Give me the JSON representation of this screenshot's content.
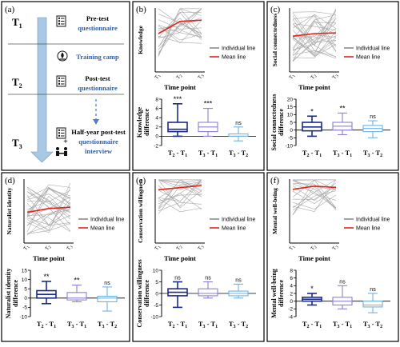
{
  "colors": {
    "individual_line": "#a9a9a9",
    "mean_line": "#e2231a",
    "box_t2t1": "#1c2a8c",
    "box_t3t1": "#8e7fd6",
    "box_t3t2": "#6fb2e4",
    "arrow": "#a8c8e6",
    "step_text": "#2e5fa8"
  },
  "icon_names": [
    "checklist-icon",
    "campfire-icon",
    "checklist-icon",
    "checklist-icon",
    "interview-icon"
  ],
  "panel_a": {
    "label": "(a)",
    "rows": [
      {
        "key": "T1",
        "main": "T",
        "sub": "1",
        "title": "Pre-test",
        "subtitle": "questionnaire"
      },
      {
        "key": "camp",
        "title": "",
        "subtitle": "Training camp"
      },
      {
        "key": "T2",
        "main": "T",
        "sub": "2",
        "title": "Post-test",
        "subtitle": "questionnaire"
      },
      {
        "key": "T3",
        "main": "T",
        "sub": "3",
        "title": "Half-year post-test",
        "subtitle": "questionnaire",
        "subtitle2": "interview"
      }
    ]
  },
  "common": {
    "xlabel": "Time point",
    "legend_individual": "Individual line",
    "legend_mean": "Mean line",
    "time_ticks": [
      "T1",
      "T2",
      "T3"
    ],
    "diff_categories": [
      {
        "main": "T",
        "sub1": "2",
        "minus": " - T",
        "sub2": "1"
      },
      {
        "main": "T",
        "sub1": "3",
        "minus": " - T",
        "sub2": "1"
      },
      {
        "main": "T",
        "sub1": "3",
        "minus": " - T",
        "sub2": "2"
      }
    ]
  },
  "chart_data": [
    {
      "panel": "(b)",
      "type": "line",
      "ylabel": "Knowledge",
      "ylim": [
        0,
        10
      ],
      "mean": [
        6.0,
        7.9,
        8.1
      ],
      "individual_count": 20,
      "box": {
        "ylabel": "Knowledge difference",
        "ylim": [
          -2,
          8
        ],
        "yticks": [
          -2,
          0,
          2,
          4,
          6,
          8
        ],
        "annotations": [
          "***",
          "***",
          "ns"
        ],
        "boxes": [
          {
            "min": 0,
            "q1": 1,
            "median": 1.5,
            "q3": 3,
            "max": 7
          },
          {
            "min": 0,
            "q1": 1,
            "median": 2,
            "q3": 3,
            "max": 6
          },
          {
            "min": -1,
            "q1": 0,
            "median": 0,
            "q3": 0.5,
            "max": 2
          }
        ]
      }
    },
    {
      "panel": "(c)",
      "type": "line",
      "ylabel": "Social connectedness",
      "ylim": [
        0,
        50
      ],
      "mean": [
        28,
        30,
        30.5
      ],
      "individual_count": 28,
      "box": {
        "ylabel": "Social connectedness difference",
        "ylim": [
          -10,
          20
        ],
        "yticks": [
          -10,
          -5,
          0,
          5,
          10,
          15,
          20
        ],
        "annotations": [
          "*",
          "**",
          "ns"
        ],
        "boxes": [
          {
            "min": -4,
            "q1": -0.5,
            "median": 2,
            "q3": 5,
            "max": 9
          },
          {
            "min": -3,
            "q1": 0,
            "median": 2.5,
            "q3": 5,
            "max": 11
          },
          {
            "min": -5,
            "q1": -1,
            "median": 1,
            "q3": 3,
            "max": 6
          }
        ]
      }
    },
    {
      "panel": "(d)",
      "type": "line",
      "ylabel": "Naturalist identity",
      "ylim": [
        0,
        25
      ],
      "mean": [
        12,
        13.5,
        14
      ],
      "individual_count": 28,
      "box": {
        "ylabel": "Naturalist identity difference",
        "ylim": [
          -10,
          15
        ],
        "yticks": [
          -10,
          -5,
          0,
          5,
          10,
          15
        ],
        "annotations": [
          "**",
          "**",
          "ns"
        ],
        "boxes": [
          {
            "min": -3,
            "q1": 0,
            "median": 2,
            "q3": 4,
            "max": 9
          },
          {
            "min": -2,
            "q1": -1,
            "median": 0,
            "q3": 3,
            "max": 7
          },
          {
            "min": -7,
            "q1": -2,
            "median": 0,
            "q3": 1,
            "max": 6
          }
        ]
      }
    },
    {
      "panel": "(e)",
      "type": "line",
      "ylabel": "Conservation willingness",
      "ylim": [
        10,
        25
      ],
      "mean": [
        22.5,
        23,
        23.5
      ],
      "individual_count": 20,
      "box": {
        "ylabel": "Conservation willingness difference",
        "ylim": [
          -10,
          10
        ],
        "yticks": [
          -10,
          -5,
          0,
          5,
          10
        ],
        "annotations": [
          "ns",
          "ns",
          "ns"
        ],
        "boxes": [
          {
            "min": -6,
            "q1": -1,
            "median": 0.5,
            "q3": 2,
            "max": 5
          },
          {
            "min": -2,
            "q1": -1,
            "median": 0,
            "q3": 2,
            "max": 5
          },
          {
            "min": -2,
            "q1": -1,
            "median": 0,
            "q3": 1,
            "max": 4
          }
        ]
      }
    },
    {
      "panel": "(f)",
      "type": "line",
      "ylabel": "Mental well-being",
      "ylim": [
        0,
        10
      ],
      "mean": [
        8.4,
        8.9,
        8.7
      ],
      "individual_count": 18,
      "box": {
        "ylabel": "Mental well-being difference",
        "ylim": [
          -4,
          8
        ],
        "yticks": [
          -4,
          -2,
          0,
          2,
          4,
          6,
          8
        ],
        "annotations": [
          "*",
          "ns",
          "ns"
        ],
        "boxes": [
          {
            "min": -1,
            "q1": 0,
            "median": 0.5,
            "q3": 1,
            "max": 2
          },
          {
            "min": -2,
            "q1": -1,
            "median": 0,
            "q3": 1,
            "max": 4
          },
          {
            "min": -3,
            "q1": -1.5,
            "median": -1,
            "q3": 0,
            "max": 2
          }
        ]
      }
    }
  ]
}
